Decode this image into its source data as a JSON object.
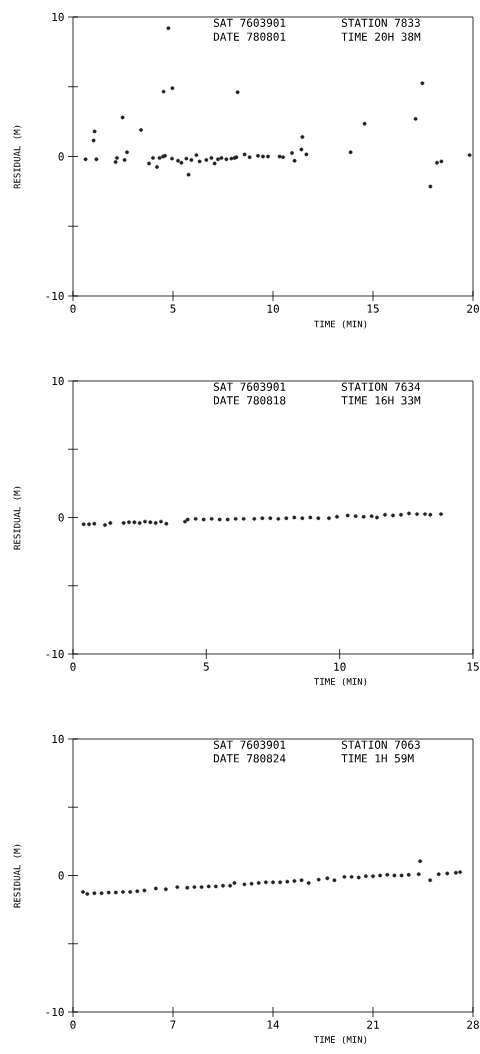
{
  "chart_data": [
    {
      "type": "scatter",
      "xlabel": "TIME (MIN)",
      "ylabel": "RESIDUAL (M)",
      "annotations": [
        "SAT 7603901",
        "STATION 7833",
        "DATE 780801",
        "TIME 20H 38M"
      ],
      "xlim": [
        0,
        20
      ],
      "ylim": [
        -10,
        10
      ],
      "xticks": [
        0,
        5,
        10,
        15,
        20
      ],
      "yticks": [
        -10,
        0,
        10
      ],
      "series": [
        {
          "color": "#222222",
          "x": [
            0.63,
            1.03,
            1.08,
            1.17,
            2.13,
            2.2,
            2.48,
            2.58,
            2.7,
            3.4,
            3.8,
            4.0,
            4.2,
            4.33,
            4.5,
            4.53,
            4.6,
            4.77,
            4.97,
            4.95,
            5.25,
            5.42,
            5.67,
            5.78,
            5.92,
            6.17,
            6.33,
            6.67,
            6.92,
            7.08,
            7.25,
            7.42,
            7.67,
            7.92,
            8.08,
            8.23,
            8.17,
            8.58,
            8.83,
            9.25,
            9.5,
            9.75,
            10.33,
            10.5,
            10.95,
            11.08,
            11.42,
            11.47,
            11.67,
            13.88,
            14.58,
            17.13,
            17.47,
            17.87,
            18.2,
            18.42,
            19.83
          ],
          "values": [
            -0.2,
            1.15,
            1.8,
            -0.2,
            -0.4,
            -0.1,
            2.8,
            -0.25,
            0.3,
            1.9,
            -0.5,
            -0.1,
            -0.75,
            -0.1,
            0,
            4.65,
            0.05,
            9.2,
            4.9,
            -0.15,
            -0.3,
            -0.45,
            -0.15,
            -1.3,
            -0.25,
            0.1,
            -0.35,
            -0.25,
            -0.1,
            -0.5,
            -0.2,
            -0.1,
            -0.2,
            -0.15,
            -0.1,
            4.6,
            -0.05,
            0.15,
            -0.05,
            0.05,
            0,
            0,
            0,
            -0.05,
            0.25,
            -0.3,
            0.5,
            1.4,
            0.15,
            0.3,
            2.35,
            2.7,
            5.25,
            -2.15,
            -0.45,
            -0.35,
            0.1
          ]
        }
      ]
    },
    {
      "type": "scatter",
      "xlabel": "TIME (MIN)",
      "ylabel": "RESIDUAL (M)",
      "annotations": [
        "SAT 7603901",
        "STATION 7634",
        "DATE 780818",
        "TIME 16H 33M"
      ],
      "xlim": [
        0,
        15
      ],
      "ylim": [
        -10,
        10
      ],
      "xticks": [
        0,
        5,
        10,
        15
      ],
      "yticks": [
        -10,
        0,
        10
      ],
      "series": [
        {
          "color": "#222222",
          "x": [
            0.4,
            0.6,
            0.8,
            1.2,
            1.4,
            1.9,
            2.1,
            2.3,
            2.5,
            2.7,
            2.9,
            3.1,
            3.3,
            3.5,
            4.2,
            4.3,
            4.6,
            4.9,
            5.2,
            5.5,
            5.8,
            6.1,
            6.4,
            6.8,
            7.1,
            7.4,
            7.7,
            8.0,
            8.3,
            8.6,
            8.9,
            9.2,
            9.6,
            9.9,
            10.3,
            10.6,
            10.9,
            11.2,
            11.4,
            11.7,
            12.0,
            12.3,
            12.6,
            12.9,
            13.2,
            13.4,
            13.8
          ],
          "values": [
            -0.5,
            -0.5,
            -0.45,
            -0.55,
            -0.4,
            -0.4,
            -0.35,
            -0.35,
            -0.4,
            -0.3,
            -0.35,
            -0.4,
            -0.3,
            -0.45,
            -0.3,
            -0.15,
            -0.1,
            -0.15,
            -0.1,
            -0.15,
            -0.15,
            -0.1,
            -0.1,
            -0.1,
            -0.05,
            -0.05,
            -0.1,
            -0.05,
            0,
            -0.05,
            0,
            -0.05,
            -0.05,
            0.05,
            0.15,
            0.1,
            0.05,
            0.1,
            0,
            0.2,
            0.15,
            0.2,
            0.3,
            0.25,
            0.25,
            0.2,
            0.25
          ]
        }
      ]
    },
    {
      "type": "scatter",
      "xlabel": "TIME (MIN)",
      "ylabel": "RESIDUAL (M)",
      "annotations": [
        "SAT 7603901",
        "STATION 7063",
        "DATE 780824",
        "TIME 1H 59M"
      ],
      "xlim": [
        0,
        28
      ],
      "ylim": [
        -10,
        10
      ],
      "xticks": [
        0,
        7,
        14,
        21,
        28
      ],
      "yticks": [
        -10,
        0,
        10
      ],
      "series": [
        {
          "color": "#222222",
          "x": [
            0.7,
            1,
            1.5,
            2,
            2.5,
            3,
            3.5,
            4,
            4.5,
            5,
            5.8,
            6.5,
            7.3,
            8,
            8.5,
            9,
            9.5,
            10,
            10.5,
            11,
            11.3,
            12,
            12.5,
            13,
            13.5,
            14,
            14.5,
            15,
            15.5,
            16,
            16.5,
            17.2,
            17.8,
            18.3,
            19,
            19.5,
            20,
            20.5,
            21,
            21.5,
            22,
            22.5,
            23,
            23.5,
            24.2,
            24.3,
            25.0,
            25.6,
            26.2,
            26.8,
            27.1
          ],
          "values": [
            -1.2,
            -1.35,
            -1.3,
            -1.3,
            -1.25,
            -1.25,
            -1.2,
            -1.2,
            -1.15,
            -1.1,
            -0.95,
            -1.0,
            -0.85,
            -0.9,
            -0.85,
            -0.85,
            -0.8,
            -0.8,
            -0.75,
            -0.75,
            -0.55,
            -0.65,
            -0.6,
            -0.55,
            -0.5,
            -0.5,
            -0.5,
            -0.45,
            -0.4,
            -0.35,
            -0.55,
            -0.3,
            -0.2,
            -0.35,
            -0.1,
            -0.1,
            -0.15,
            -0.05,
            -0.05,
            0,
            0.05,
            0,
            0,
            0.05,
            0.1,
            1.05,
            -0.35,
            0.1,
            0.15,
            0.2,
            0.25
          ]
        }
      ]
    }
  ]
}
